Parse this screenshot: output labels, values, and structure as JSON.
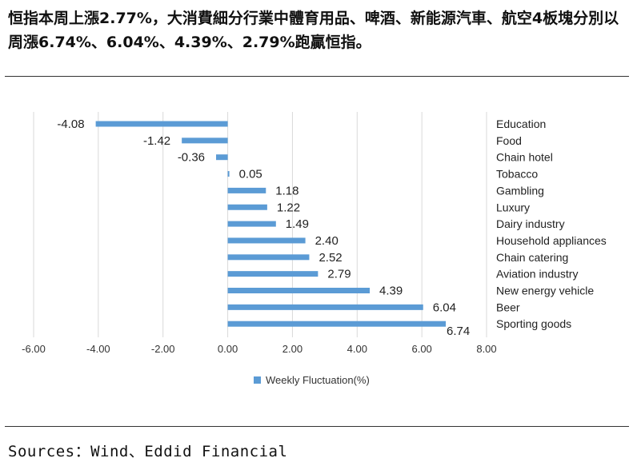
{
  "headline": "恒指本周上漲2.77%，大消費細分行業中體育用品、啤酒、新能源汽車、航空4板塊分別以周漲6.74%、6.04%、4.39%、2.79%跑贏恒指。",
  "source": "Sources：Wind、Eddid Financial",
  "chart_data": {
    "type": "bar",
    "orientation": "horizontal",
    "categories": [
      "Education",
      "Food",
      "Chain hotel",
      "Tobacco",
      "Gambling",
      "Luxury",
      "Dairy industry",
      "Household appliances",
      "Chain catering",
      "Aviation industry",
      "New energy vehicle",
      "Beer",
      "Sporting goods"
    ],
    "values": [
      -4.08,
      -1.42,
      -0.36,
      0.05,
      1.18,
      1.22,
      1.49,
      2.4,
      2.52,
      2.79,
      4.39,
      6.04,
      6.74
    ],
    "value_labels": [
      "-4.08",
      "-1.42",
      "-0.36",
      "0.05",
      "1.18",
      "1.22",
      "1.49",
      "2.40",
      "2.52",
      "2.79",
      "4.39",
      "6.04",
      "6.74"
    ],
    "series": [
      {
        "name": "Weekly Fluctuation(%)",
        "color": "#5b9bd5"
      }
    ],
    "xlim": [
      -6,
      8
    ],
    "xticks": [
      "-6.00",
      "-4.00",
      "-2.00",
      "0.00",
      "2.00",
      "4.00",
      "6.00",
      "8.00"
    ],
    "xtick_values": [
      -6,
      -4,
      -2,
      0,
      2,
      4,
      6,
      8
    ],
    "grid": "vertical",
    "legend": "bottom-center",
    "category_labels_position": "right"
  }
}
